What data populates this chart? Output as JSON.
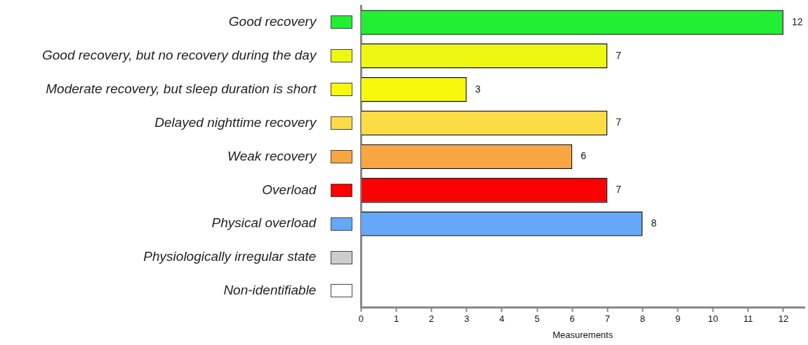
{
  "chart_data": {
    "type": "bar",
    "orientation": "horizontal",
    "xlabel": "Measurements",
    "categories": [
      "Good recovery",
      "Good recovery, but no recovery during the day",
      "Moderate recovery, but sleep duration is short",
      "Delayed nighttime recovery",
      "Weak recovery",
      "Overload",
      "Physical overload",
      "Physiologically irregular state",
      "Non-identifiable"
    ],
    "values": [
      12,
      7,
      3,
      7,
      6,
      7,
      8,
      0,
      0
    ],
    "colors": [
      "#22ee33",
      "#eef711",
      "#f8f80a",
      "#fbdc45",
      "#f9a642",
      "#ff0000",
      "#66a8f8",
      "#cccccc",
      "#ffffff"
    ],
    "value_labels": [
      "12",
      "7",
      "3",
      "7",
      "6",
      "7",
      "8",
      null,
      null
    ],
    "xlim": [
      0,
      12.6
    ],
    "xticks": [
      0,
      1,
      2,
      3,
      4,
      5,
      6,
      7,
      8,
      9,
      10,
      11,
      12
    ],
    "grid": false,
    "legend": false
  }
}
